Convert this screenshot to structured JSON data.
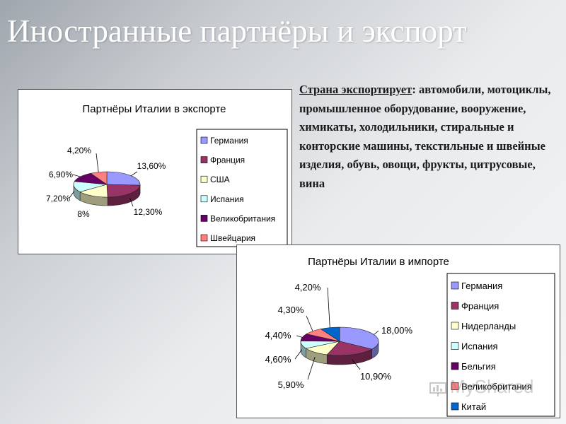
{
  "slide": {
    "title": "Иностранные партнёры и экспорт"
  },
  "description": {
    "lead": "Страна экспортирует",
    "text": ": автомобили, мотоциклы, промышленное оборудование, вооружение, химикаты, холодильники, стиральные и конторские машины, текстильные и швейные изделия, обувь, овощи, фрукты, цитрусовые, вина"
  },
  "watermark": "MyShared",
  "chart_data": [
    {
      "type": "pie",
      "title": "Партнёры Италии в экспорте",
      "categories": [
        "Германия",
        "Франция",
        "США",
        "Испания",
        "Великобритания",
        "Швейцария"
      ],
      "values": [
        13.6,
        12.3,
        8,
        7.2,
        6.9,
        4.2
      ],
      "value_labels": [
        "13,60%",
        "12,30%",
        "8%",
        "7,20%",
        "6,90%",
        "4,20%"
      ],
      "colors": [
        "#9999ff",
        "#993366",
        "#ffffcc",
        "#ccffff",
        "#660066",
        "#ff8080"
      ],
      "legend": "right",
      "style": "3d-pie"
    },
    {
      "type": "pie",
      "title": "Партнёры Италии в импорте",
      "categories": [
        "Германия",
        "Франция",
        "Нидерланды",
        "Испания",
        "Бельгия",
        "Великобритания",
        "Китай"
      ],
      "values": [
        18.0,
        10.9,
        5.9,
        4.6,
        4.4,
        4.3,
        4.2
      ],
      "value_labels": [
        "18,00%",
        "10,90%",
        "5,90%",
        "4,60%",
        "4,40%",
        "4,30%",
        "4,20%"
      ],
      "colors": [
        "#9999ff",
        "#993366",
        "#ffffcc",
        "#ccffff",
        "#660066",
        "#ff8080",
        "#0066cc"
      ],
      "legend": "right",
      "style": "3d-pie"
    }
  ]
}
